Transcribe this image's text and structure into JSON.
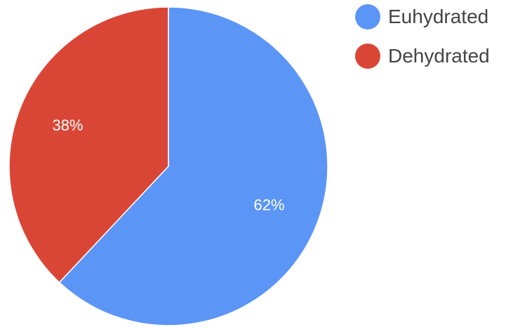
{
  "chart_data": {
    "type": "pie",
    "title": "",
    "categories": [
      "Euhydrated",
      "Dehydrated"
    ],
    "values": [
      62,
      38
    ],
    "labels": [
      "62%",
      "38%"
    ],
    "colors": [
      "#5b95f5",
      "#da4636"
    ],
    "start": "top, clockwise",
    "legend_position": "top-right"
  },
  "legend": {
    "items": [
      {
        "label": "Euhydrated",
        "color": "#5b95f5"
      },
      {
        "label": "Dehydrated",
        "color": "#da4636"
      }
    ]
  }
}
